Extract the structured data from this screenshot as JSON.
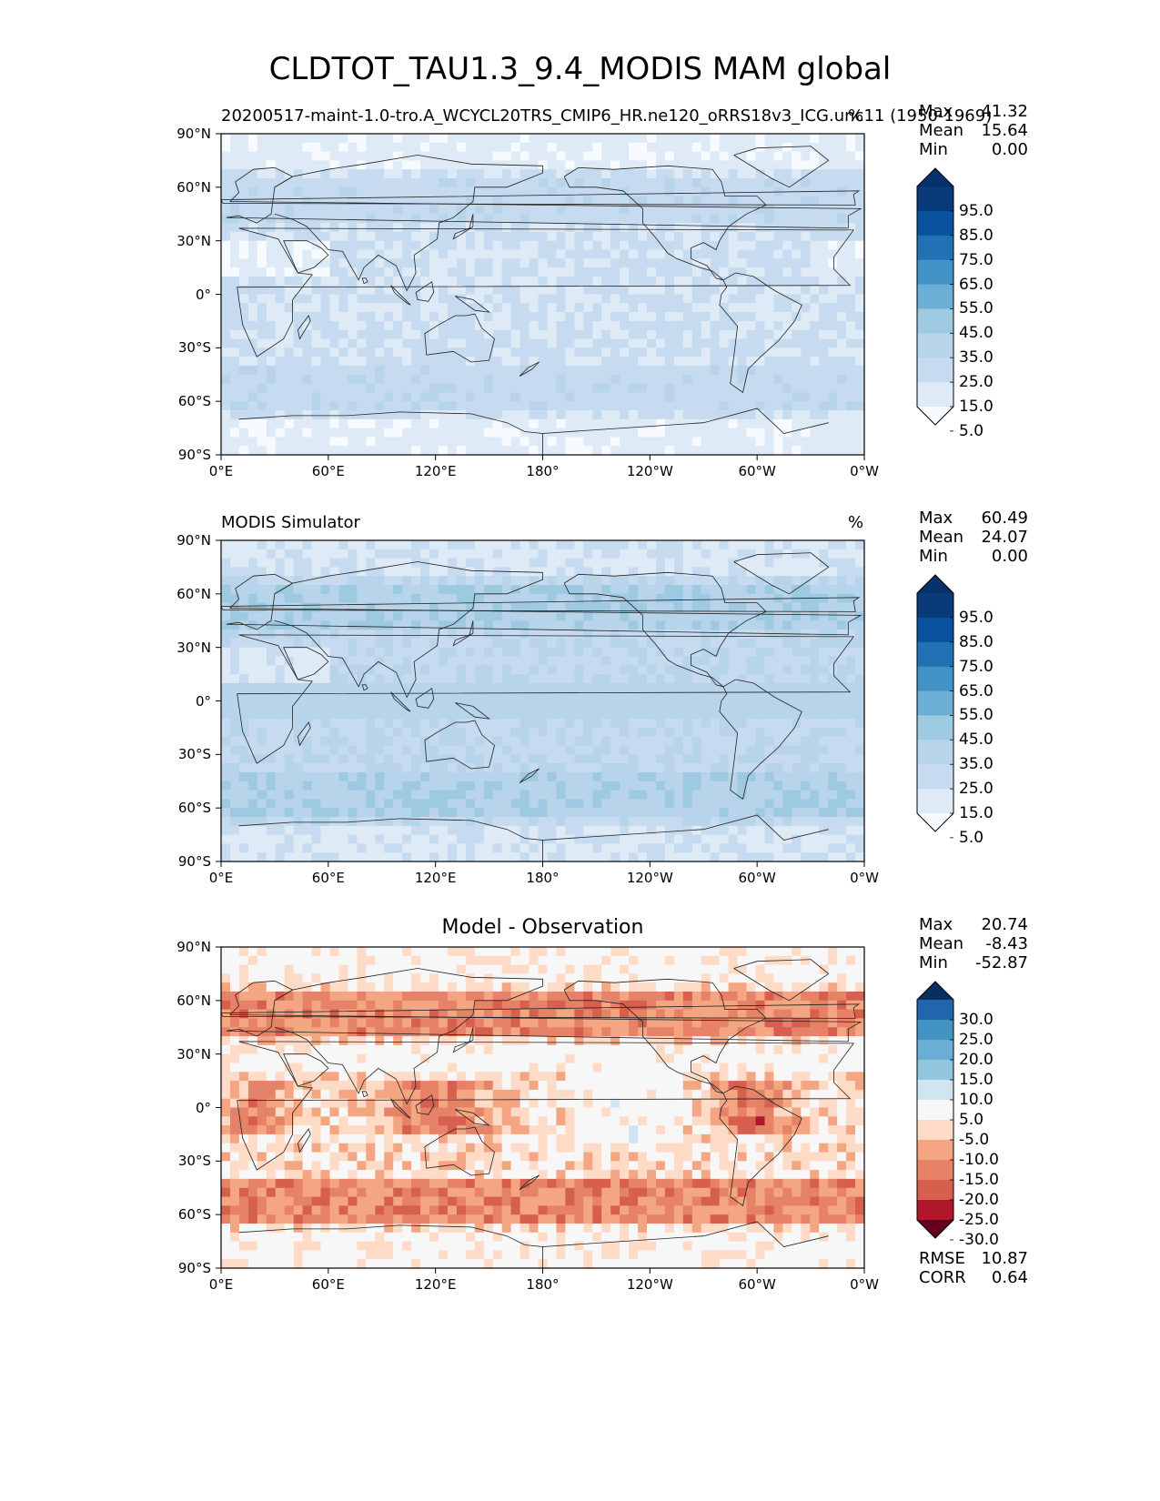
{
  "title": "CLDTOT_TAU1.3_9.4_MODIS MAM global",
  "colors": {
    "blues": [
      "#f7fbff",
      "#deebf7",
      "#c6dbef",
      "#b7d4ea",
      "#9ecae1",
      "#6baed6",
      "#4292c6",
      "#2171b5",
      "#08519c",
      "#083a7a",
      "#08306b"
    ],
    "diverging": [
      "#67001f",
      "#b2182b",
      "#d6604d",
      "#e58267",
      "#f4a582",
      "#fddbc7",
      "#f7f7f7",
      "#d1e5f0",
      "#92c5de",
      "#6aaed6",
      "#4393c3",
      "#2166ac",
      "#053061"
    ]
  },
  "panels": [
    {
      "id": "test",
      "title_left": "20200517-maint-1.0-tro.A_WCYCL20TRS_CMIP6_HR.ne120_oRRS18v3_ICG.unc11 (1950-1969)",
      "title_center": "",
      "units": "%",
      "stats": [
        {
          "label": "Max",
          "value": "41.32"
        },
        {
          "label": "Mean",
          "value": "15.64"
        },
        {
          "label": "Min",
          "value": "0.00"
        }
      ],
      "colorbar_levels": [
        "95.0",
        "85.0",
        "75.0",
        "65.0",
        "55.0",
        "45.0",
        "35.0",
        "25.0",
        "15.0",
        "5.0"
      ]
    },
    {
      "id": "reference",
      "title_left": "MODIS Simulator",
      "title_center": "",
      "units": "%",
      "stats": [
        {
          "label": "Max",
          "value": "60.49"
        },
        {
          "label": "Mean",
          "value": "24.07"
        },
        {
          "label": "Min",
          "value": "0.00"
        }
      ],
      "colorbar_levels": [
        "95.0",
        "85.0",
        "75.0",
        "65.0",
        "55.0",
        "45.0",
        "35.0",
        "25.0",
        "15.0",
        "5.0"
      ]
    },
    {
      "id": "difference",
      "title_left": "",
      "title_center": "Model - Observation",
      "units": "",
      "stats": [
        {
          "label": "Max",
          "value": "20.74"
        },
        {
          "label": "Mean",
          "value": "-8.43"
        },
        {
          "label": "Min",
          "value": "-52.87"
        }
      ],
      "colorbar_levels": [
        "30.0",
        "25.0",
        "20.0",
        "15.0",
        "10.0",
        "5.0",
        "-5.0",
        "-10.0",
        "-15.0",
        "-20.0",
        "-25.0",
        "-30.0"
      ],
      "extra_stats": [
        {
          "label": "RMSE",
          "value": "10.87"
        },
        {
          "label": "CORR",
          "value": "0.64"
        }
      ]
    }
  ],
  "axes": {
    "lat_ticks": [
      "90°N",
      "60°N",
      "30°N",
      "0°",
      "30°S",
      "60°S",
      "90°S"
    ],
    "lon_ticks": [
      "0°E",
      "60°E",
      "120°E",
      "180°",
      "120°W",
      "60°W",
      "0°W"
    ]
  },
  "chart_data": [
    {
      "type": "heatmap",
      "title": "CLDTOT_TAU1.3_9.4_MODIS MAM global",
      "subtitle": "20200517-maint-1.0-tro.A_WCYCL20TRS_CMIP6_HR.ne120_oRRS18v3_ICG.unc11 (1950-1969)",
      "units": "%",
      "x_range": [
        0,
        360
      ],
      "y_range": [
        -90,
        90
      ],
      "levels": [
        5,
        15,
        25,
        35,
        45,
        55,
        65,
        75,
        85,
        95
      ],
      "max": 41.32,
      "mean": 15.64,
      "min": 0.0
    },
    {
      "type": "heatmap",
      "title": "MODIS Simulator",
      "units": "%",
      "x_range": [
        0,
        360
      ],
      "y_range": [
        -90,
        90
      ],
      "levels": [
        5,
        15,
        25,
        35,
        45,
        55,
        65,
        75,
        85,
        95
      ],
      "max": 60.49,
      "mean": 24.07,
      "min": 0.0
    },
    {
      "type": "heatmap",
      "title": "Model - Observation",
      "x_range": [
        0,
        360
      ],
      "y_range": [
        -90,
        90
      ],
      "levels": [
        -30,
        -25,
        -20,
        -15,
        -10,
        -5,
        5,
        10,
        15,
        20,
        25,
        30
      ],
      "max": 20.74,
      "mean": -8.43,
      "min": -52.87,
      "rmse": 10.87,
      "corr": 0.64
    }
  ]
}
